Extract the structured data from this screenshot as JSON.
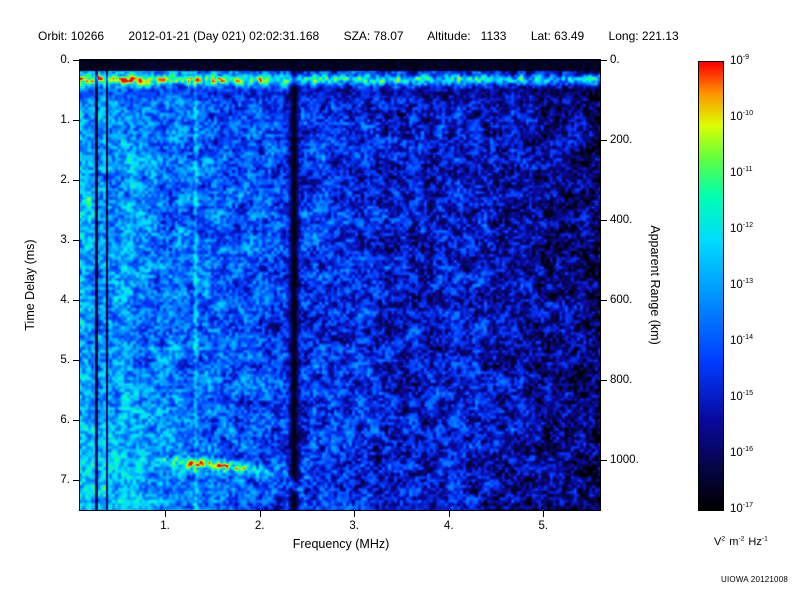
{
  "header": {
    "orbit_label": "Orbit:",
    "orbit_value": "10266",
    "datetime": "2012-01-21 (Day 021) 02:02:31.168",
    "sza_label": "SZA:",
    "sza_value": "78.07",
    "altitude_label": "Altitude:",
    "altitude_value": "1133",
    "lat_label": "Lat:",
    "lat_value": "63.49",
    "long_label": "Long:",
    "long_value": "221.13"
  },
  "credit": "UIOWA 20121008",
  "chart_data": {
    "type": "heatmap",
    "title": "",
    "xlabel": "Frequency (MHz)",
    "ylabel_left": "Time Delay (ms)",
    "ylabel_right": "Apparent Range (km)",
    "xlim": [
      0.1,
      5.6
    ],
    "ylim_ms": [
      0,
      7.5
    ],
    "x_ticks": [
      {
        "v": 1,
        "label": "1."
      },
      {
        "v": 2,
        "label": "2."
      },
      {
        "v": 3,
        "label": "3."
      },
      {
        "v": 4,
        "label": "4."
      },
      {
        "v": 5,
        "label": "5."
      }
    ],
    "y_ticks_ms": [
      {
        "v": 0,
        "label": "0."
      },
      {
        "v": 1,
        "label": "1."
      },
      {
        "v": 2,
        "label": "2."
      },
      {
        "v": 3,
        "label": "3."
      },
      {
        "v": 4,
        "label": "4."
      },
      {
        "v": 5,
        "label": "5."
      },
      {
        "v": 6,
        "label": "6."
      },
      {
        "v": 7,
        "label": "7."
      }
    ],
    "right_ticks_km": [
      {
        "v": 0,
        "label": "0."
      },
      {
        "v": 200,
        "label": "200."
      },
      {
        "v": 400,
        "label": "400."
      },
      {
        "v": 600,
        "label": "600."
      },
      {
        "v": 800,
        "label": "800."
      },
      {
        "v": 1000,
        "label": "1000."
      }
    ],
    "colorbar": {
      "scale": "log10",
      "tick_exponents": [
        -9,
        -10,
        -11,
        -12,
        -13,
        -14,
        -15,
        -16,
        -17
      ],
      "unit": {
        "v": "V",
        "v_exp": "2",
        "m": "m",
        "m_exp": "-2",
        "hz": "Hz",
        "hz_exp": "-1"
      },
      "colormap_stops": [
        [
          0.0,
          0,
          0,
          0
        ],
        [
          0.08,
          5,
          5,
          60
        ],
        [
          0.2,
          10,
          10,
          160
        ],
        [
          0.33,
          0,
          60,
          255
        ],
        [
          0.48,
          0,
          150,
          255
        ],
        [
          0.6,
          0,
          220,
          255
        ],
        [
          0.7,
          0,
          255,
          180
        ],
        [
          0.78,
          90,
          255,
          70
        ],
        [
          0.86,
          220,
          255,
          0
        ],
        [
          0.93,
          255,
          150,
          0
        ],
        [
          1.0,
          255,
          0,
          0
        ]
      ]
    },
    "features": {
      "top_blank_ms": 0.17,
      "surface_pulse_ms": 0.32,
      "dark_band_mhz": 2.36,
      "dark_lines_mhz": [
        0.27,
        0.38
      ],
      "bright_line_mhz": 1.32,
      "left_bright_edge_mhz": 0.14,
      "echo_trace": {
        "f_start_mhz": 0.9,
        "f_hook_mhz": 2.35,
        "f_end_mhz": 2.47,
        "t_start_ms": 6.68,
        "t_end_ms": 7.25
      },
      "blob": {
        "f_mhz": 0.18,
        "t_ms": 2.35
      }
    },
    "noise_seed": 987654321
  }
}
